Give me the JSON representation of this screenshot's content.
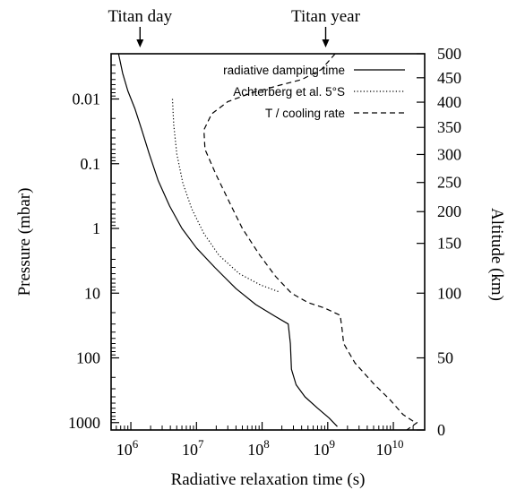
{
  "chart_data": {
    "type": "line",
    "xlabel": "Radiative relaxation time (s)",
    "ylabel_left": "Pressure (mbar)",
    "ylabel_right": "Altitude (km)",
    "x_scale": "log",
    "y_scale": "log",
    "xlim": [
      500000,
      30000000000
    ],
    "ylim_pressure": [
      1300,
      0.002
    ],
    "x_ticks": [
      {
        "value": 1000000,
        "base": "10",
        "exp": "6"
      },
      {
        "value": 10000000,
        "base": "10",
        "exp": "7"
      },
      {
        "value": 100000000,
        "base": "10",
        "exp": "8"
      },
      {
        "value": 1000000000,
        "base": "10",
        "exp": "9"
      },
      {
        "value": 10000000000,
        "base": "10",
        "exp": "10"
      }
    ],
    "y_ticks_left": [
      {
        "value": 0.01,
        "label": "0.01"
      },
      {
        "value": 0.1,
        "label": "0.1"
      },
      {
        "value": 1,
        "label": "1"
      },
      {
        "value": 10,
        "label": "10"
      },
      {
        "value": 100,
        "label": "100"
      },
      {
        "value": 1000,
        "label": "1000"
      }
    ],
    "y_ticks_right": [
      {
        "altitude": 500,
        "pressure": 0.002,
        "label": "500"
      },
      {
        "altitude": 450,
        "pressure": 0.0047,
        "label": "450"
      },
      {
        "altitude": 400,
        "pressure": 0.0112,
        "label": "400"
      },
      {
        "altitude": 350,
        "pressure": 0.0275,
        "label": "350"
      },
      {
        "altitude": 300,
        "pressure": 0.072,
        "label": "300"
      },
      {
        "altitude": 250,
        "pressure": 0.195,
        "label": "250"
      },
      {
        "altitude": 200,
        "pressure": 0.55,
        "label": "200"
      },
      {
        "altitude": 150,
        "pressure": 1.7,
        "label": "150"
      },
      {
        "altitude": 100,
        "pressure": 10,
        "label": "100"
      },
      {
        "altitude": 50,
        "pressure": 100,
        "label": "50"
      },
      {
        "altitude": 0,
        "pressure": 1300,
        "label": "0"
      }
    ],
    "top_markers": [
      {
        "label": "Titan day",
        "x": 1380000
      },
      {
        "label": "Titan year",
        "x": 930000000
      }
    ],
    "legend": "top-right",
    "series": [
      {
        "name": "radiative damping time",
        "style": "solid",
        "points": [
          [
            650000,
            0.002
          ],
          [
            750000,
            0.004
          ],
          [
            900000,
            0.0075
          ],
          [
            1150000,
            0.014
          ],
          [
            1450000,
            0.029
          ],
          [
            1900000,
            0.07
          ],
          [
            2600000,
            0.18
          ],
          [
            3900000,
            0.45
          ],
          [
            6000000,
            1.0
          ],
          [
            10000000,
            2.0
          ],
          [
            19000000,
            4.0
          ],
          [
            40000000,
            8.5
          ],
          [
            80000000,
            15
          ],
          [
            160000000,
            23
          ],
          [
            250000000,
            30
          ],
          [
            270000000,
            60
          ],
          [
            280000000,
            150
          ],
          [
            330000000,
            260
          ],
          [
            450000000,
            400
          ],
          [
            700000000,
            600
          ],
          [
            1050000000,
            850
          ],
          [
            1400000000,
            1150
          ]
        ]
      },
      {
        "name": "Achterberg et al. 5°S",
        "style": "dotted",
        "points": [
          [
            4300000,
            0.01
          ],
          [
            4500000,
            0.025
          ],
          [
            5000000,
            0.07
          ],
          [
            6200000,
            0.2
          ],
          [
            8500000,
            0.5
          ],
          [
            13000000,
            1.2
          ],
          [
            22000000,
            2.6
          ],
          [
            45000000,
            5
          ],
          [
            95000000,
            7.5
          ],
          [
            180000000,
            9.5
          ]
        ]
      },
      {
        "name": "T / cooling rate",
        "style": "dashed",
        "points": [
          [
            1300000000,
            0.002
          ],
          [
            800000000,
            0.0035
          ],
          [
            400000000,
            0.005
          ],
          [
            200000000,
            0.006
          ],
          [
            70000000,
            0.008
          ],
          [
            30000000,
            0.011
          ],
          [
            17000000,
            0.017
          ],
          [
            13000000,
            0.03
          ],
          [
            13500000,
            0.06
          ],
          [
            20000000,
            0.15
          ],
          [
            32000000,
            0.4
          ],
          [
            50000000,
            1.0
          ],
          [
            90000000,
            2.5
          ],
          [
            160000000,
            5.5
          ],
          [
            280000000,
            10
          ],
          [
            500000000,
            14
          ],
          [
            900000000,
            17
          ],
          [
            1550000000,
            22
          ],
          [
            1650000000,
            35
          ],
          [
            1750000000,
            60
          ],
          [
            2600000000,
            120
          ],
          [
            5000000000,
            250
          ],
          [
            9000000000,
            450
          ],
          [
            14000000000,
            750
          ],
          [
            20000000000,
            950
          ],
          [
            23000000000,
            1000
          ],
          [
            16000000000,
            1300
          ]
        ]
      }
    ]
  }
}
